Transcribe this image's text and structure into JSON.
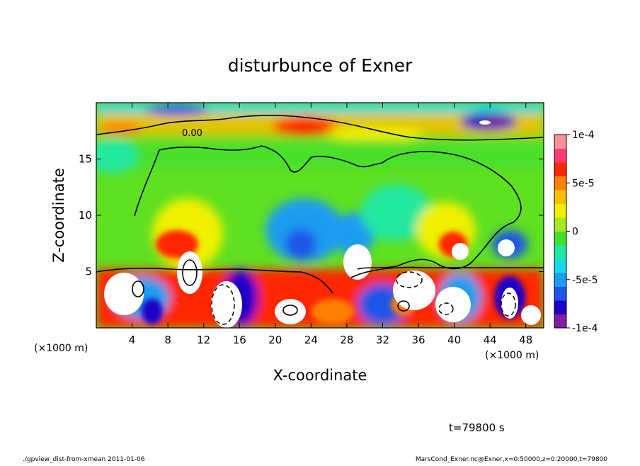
{
  "chart_data": {
    "type": "heatmap",
    "title": "disturbunce of Exner",
    "xlabel": "X-coordinate",
    "ylabel": "Z-coordinate",
    "x_unit": "(×1000 m)",
    "z_unit": "(×1000 m)",
    "xlim": [
      0,
      50
    ],
    "ylim": [
      0,
      20
    ],
    "x_ticks": [
      4,
      8,
      12,
      16,
      20,
      24,
      28,
      32,
      36,
      40,
      44,
      48
    ],
    "y_ticks": [
      5,
      10,
      15
    ],
    "colorbar": {
      "range": [
        -0.0001,
        0.0001
      ],
      "tick_values": [
        0.0001,
        5e-05,
        0,
        -5e-05,
        -0.0001
      ],
      "tick_labels": [
        "1e-4",
        "5e-5",
        "0",
        "-5e-5",
        "-1e-4"
      ],
      "colors": [
        "#7f1fa0",
        "#1a00c8",
        "#1f55e8",
        "#1b9cf0",
        "#18d8e8",
        "#20e8a0",
        "#3fe030",
        "#a8e820",
        "#f0f000",
        "#f8c000",
        "#ff8000",
        "#ff2800",
        "#ff3c78",
        "#ff9098"
      ]
    },
    "contour_label": "0.00",
    "time_label": "t=79800 s",
    "footer_left": "./gpview_dist-from-xmean  2011-01-06",
    "footer_right": "MarsCond_Exner.nc@Exner,x=0:50000,z=0:20000,t=79800"
  }
}
